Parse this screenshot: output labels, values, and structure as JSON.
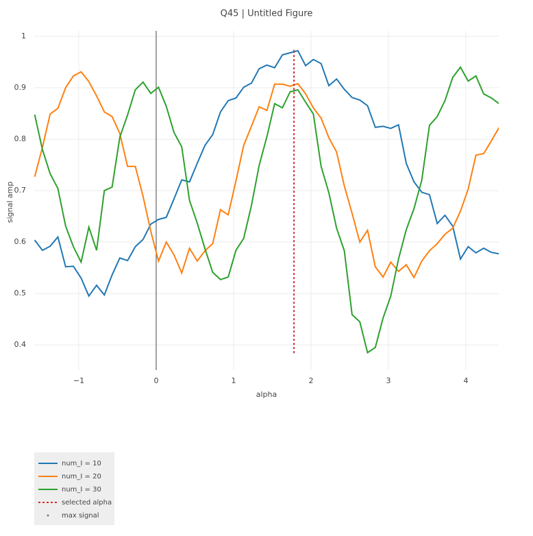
{
  "chart_data": {
    "type": "line",
    "title": "Q45 | Untitled Figure",
    "x_label": "alpha",
    "y_label": "signal amp",
    "x": [
      -1.57,
      -1.47,
      -1.37,
      -1.27,
      -1.17,
      -1.07,
      -0.97,
      -0.87,
      -0.77,
      -0.67,
      -0.57,
      -0.47,
      -0.37,
      -0.27,
      -0.17,
      -0.07,
      0.03,
      0.13,
      0.23,
      0.33,
      0.43,
      0.53,
      0.63,
      0.73,
      0.83,
      0.93,
      1.03,
      1.13,
      1.23,
      1.33,
      1.43,
      1.53,
      1.63,
      1.73,
      1.83,
      1.93,
      2.03,
      2.13,
      2.23,
      2.33,
      2.43,
      2.53,
      2.63,
      2.73,
      2.83,
      2.93,
      3.03,
      3.13,
      3.23,
      3.33,
      3.43,
      3.53,
      3.63,
      3.73,
      3.83,
      3.93,
      4.03,
      4.13,
      4.23,
      4.33,
      4.43
    ],
    "series": [
      {
        "name": "num_I = 10",
        "color": "#1f77b4",
        "mode": "solid",
        "values": [
          0.604,
          0.584,
          0.592,
          0.61,
          0.552,
          0.553,
          0.53,
          0.495,
          0.516,
          0.497,
          0.536,
          0.569,
          0.564,
          0.591,
          0.605,
          0.635,
          0.644,
          0.648,
          0.684,
          0.721,
          0.717,
          0.753,
          0.788,
          0.809,
          0.853,
          0.875,
          0.88,
          0.901,
          0.909,
          0.937,
          0.944,
          0.939,
          0.964,
          0.968,
          0.972,
          0.943,
          0.955,
          0.947,
          0.904,
          0.917,
          0.897,
          0.881,
          0.876,
          0.865,
          0.823,
          0.825,
          0.821,
          0.828,
          0.753,
          0.717,
          0.697,
          0.692,
          0.636,
          0.652,
          0.631,
          0.567,
          0.591,
          0.579,
          0.588,
          0.58,
          0.577
        ]
      },
      {
        "name": "num_I = 20",
        "color": "#ff7f0e",
        "mode": "solid",
        "values": [
          0.727,
          0.784,
          0.849,
          0.86,
          0.9,
          0.923,
          0.931,
          0.912,
          0.884,
          0.853,
          0.844,
          0.811,
          0.747,
          0.747,
          0.689,
          0.621,
          0.563,
          0.6,
          0.575,
          0.54,
          0.588,
          0.563,
          0.583,
          0.597,
          0.663,
          0.653,
          0.719,
          0.788,
          0.825,
          0.863,
          0.856,
          0.907,
          0.907,
          0.903,
          0.908,
          0.888,
          0.861,
          0.841,
          0.803,
          0.775,
          0.709,
          0.656,
          0.6,
          0.623,
          0.552,
          0.532,
          0.561,
          0.543,
          0.556,
          0.531,
          0.563,
          0.583,
          0.597,
          0.615,
          0.627,
          0.66,
          0.703,
          0.769,
          0.772,
          0.797,
          0.823
        ]
      },
      {
        "name": "num_I = 30",
        "color": "#2ca02c",
        "mode": "solid",
        "values": [
          0.848,
          0.78,
          0.733,
          0.704,
          0.631,
          0.591,
          0.561,
          0.629,
          0.584,
          0.7,
          0.707,
          0.804,
          0.847,
          0.896,
          0.911,
          0.889,
          0.901,
          0.864,
          0.813,
          0.785,
          0.681,
          0.637,
          0.587,
          0.541,
          0.527,
          0.532,
          0.584,
          0.607,
          0.671,
          0.749,
          0.805,
          0.869,
          0.861,
          0.892,
          0.896,
          0.872,
          0.849,
          0.747,
          0.696,
          0.627,
          0.583,
          0.459,
          0.445,
          0.385,
          0.395,
          0.452,
          0.495,
          0.567,
          0.624,
          0.665,
          0.72,
          0.827,
          0.844,
          0.875,
          0.92,
          0.94,
          0.913,
          0.923,
          0.888,
          0.88,
          0.869
        ]
      },
      {
        "name": "selected alpha",
        "color": "#d62728",
        "mode": "dot",
        "x": [
          1.78,
          1.78
        ],
        "values": [
          0.384,
          0.972
        ]
      },
      {
        "name": "max signal",
        "color": "#7f7f7f",
        "mode": "markers",
        "x": [
          1.78
        ],
        "values": [
          0.972
        ]
      }
    ],
    "xlim": [
      -1.575,
      4.425
    ],
    "ylim": [
      0.351,
      1.004
    ],
    "xticks": [
      {
        "value": -1,
        "label": "−1"
      },
      0,
      1,
      2,
      3,
      4
    ],
    "yticks": [
      0.4,
      0.5,
      0.6,
      0.7,
      0.8,
      0.9,
      1
    ],
    "grid": true,
    "zeroline": true,
    "legend": "bottom-left"
  }
}
